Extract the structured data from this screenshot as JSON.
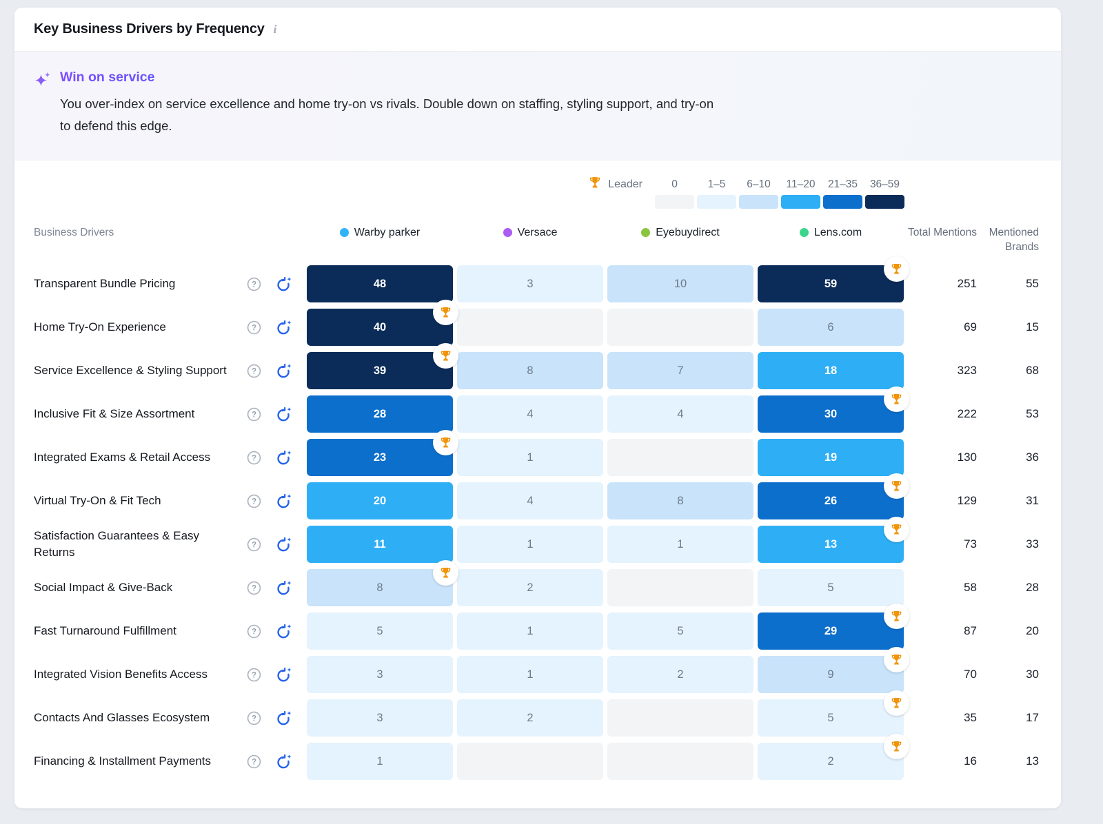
{
  "card": {
    "title": "Key Business Drivers by Frequency",
    "info_icon": "i"
  },
  "insight": {
    "title": "Win on service",
    "body": "You over-index on service excellence and home try-on vs rivals. Double down on staffing, styling support, and try-on to defend this edge.",
    "sparkles_icon": "sparkles-icon",
    "accent_gradient": [
      "#7C4DFF",
      "#1A6BEB"
    ]
  },
  "legend": {
    "leader_label": "Leader",
    "leader_icon": "trophy-icon",
    "buckets": [
      {
        "label": "0",
        "color": "#F2F4F6"
      },
      {
        "label": "1–5",
        "color": "#E4F3FD"
      },
      {
        "label": "6–10",
        "color": "#C8E3FA"
      },
      {
        "label": "11–20",
        "color": "#2EAFF5"
      },
      {
        "label": "21–35",
        "color": "#0D6FCC"
      },
      {
        "label": "36–59",
        "color": "#0B2C59"
      }
    ]
  },
  "colors": {
    "cell_text_light": "#6F7A89",
    "cell_text_dark": "#FFFFFF",
    "trophy": "#F0940A"
  },
  "table": {
    "row_header": "Business Drivers",
    "total_header": "Total Mentions",
    "brands_header": "Mentioned Brands",
    "brands": [
      {
        "name": "Warby parker",
        "color": "#2FB3F7"
      },
      {
        "name": "Versace",
        "color": "#AB5CF2"
      },
      {
        "name": "Eyebuydirect",
        "color": "#8BC43F"
      },
      {
        "name": "Lens.com",
        "color": "#3BD68C"
      }
    ],
    "rows": [
      {
        "label": "Transparent Bundle Pricing",
        "cells": [
          {
            "v": "48",
            "b": 5,
            "t": false
          },
          {
            "v": "3",
            "b": 1,
            "t": false
          },
          {
            "v": "10",
            "b": 2,
            "t": false
          },
          {
            "v": "59",
            "b": 5,
            "t": true
          }
        ],
        "total": "251",
        "brands": "55"
      },
      {
        "label": "Home Try-On Experience",
        "cells": [
          {
            "v": "40",
            "b": 5,
            "t": true
          },
          {
            "v": "",
            "b": 0,
            "t": false
          },
          {
            "v": "",
            "b": 0,
            "t": false
          },
          {
            "v": "6",
            "b": 2,
            "t": false
          }
        ],
        "total": "69",
        "brands": "15"
      },
      {
        "label": "Service Excellence & Styling Support",
        "cells": [
          {
            "v": "39",
            "b": 5,
            "t": true
          },
          {
            "v": "8",
            "b": 2,
            "t": false
          },
          {
            "v": "7",
            "b": 2,
            "t": false
          },
          {
            "v": "18",
            "b": 3,
            "t": false
          }
        ],
        "total": "323",
        "brands": "68"
      },
      {
        "label": "Inclusive Fit & Size Assortment",
        "cells": [
          {
            "v": "28",
            "b": 4,
            "t": false
          },
          {
            "v": "4",
            "b": 1,
            "t": false
          },
          {
            "v": "4",
            "b": 1,
            "t": false
          },
          {
            "v": "30",
            "b": 4,
            "t": true
          }
        ],
        "total": "222",
        "brands": "53"
      },
      {
        "label": "Integrated Exams & Retail Access",
        "cells": [
          {
            "v": "23",
            "b": 4,
            "t": true
          },
          {
            "v": "1",
            "b": 1,
            "t": false
          },
          {
            "v": "",
            "b": 0,
            "t": false
          },
          {
            "v": "19",
            "b": 3,
            "t": false
          }
        ],
        "total": "130",
        "brands": "36"
      },
      {
        "label": "Virtual Try-On & Fit Tech",
        "cells": [
          {
            "v": "20",
            "b": 3,
            "t": false
          },
          {
            "v": "4",
            "b": 1,
            "t": false
          },
          {
            "v": "8",
            "b": 2,
            "t": false
          },
          {
            "v": "26",
            "b": 4,
            "t": true
          }
        ],
        "total": "129",
        "brands": "31"
      },
      {
        "label": "Satisfaction Guarantees & Easy Returns",
        "cells": [
          {
            "v": "11",
            "b": 3,
            "t": false
          },
          {
            "v": "1",
            "b": 1,
            "t": false
          },
          {
            "v": "1",
            "b": 1,
            "t": false
          },
          {
            "v": "13",
            "b": 3,
            "t": true
          }
        ],
        "total": "73",
        "brands": "33"
      },
      {
        "label": "Social Impact & Give-Back",
        "cells": [
          {
            "v": "8",
            "b": 2,
            "t": true
          },
          {
            "v": "2",
            "b": 1,
            "t": false
          },
          {
            "v": "",
            "b": 0,
            "t": false
          },
          {
            "v": "5",
            "b": 1,
            "t": false
          }
        ],
        "total": "58",
        "brands": "28"
      },
      {
        "label": "Fast Turnaround Fulfillment",
        "cells": [
          {
            "v": "5",
            "b": 1,
            "t": false
          },
          {
            "v": "1",
            "b": 1,
            "t": false
          },
          {
            "v": "5",
            "b": 1,
            "t": false
          },
          {
            "v": "29",
            "b": 4,
            "t": true
          }
        ],
        "total": "87",
        "brands": "20"
      },
      {
        "label": "Integrated Vision Benefits Access",
        "cells": [
          {
            "v": "3",
            "b": 1,
            "t": false
          },
          {
            "v": "1",
            "b": 1,
            "t": false
          },
          {
            "v": "2",
            "b": 1,
            "t": false
          },
          {
            "v": "9",
            "b": 2,
            "t": true
          }
        ],
        "total": "70",
        "brands": "30"
      },
      {
        "label": "Contacts And Glasses Ecosystem",
        "cells": [
          {
            "v": "3",
            "b": 1,
            "t": false
          },
          {
            "v": "2",
            "b": 1,
            "t": false
          },
          {
            "v": "",
            "b": 0,
            "t": false
          },
          {
            "v": "5",
            "b": 1,
            "t": true
          }
        ],
        "total": "35",
        "brands": "17"
      },
      {
        "label": "Financing & Installment Payments",
        "cells": [
          {
            "v": "1",
            "b": 1,
            "t": false
          },
          {
            "v": "",
            "b": 0,
            "t": false
          },
          {
            "v": "",
            "b": 0,
            "t": false
          },
          {
            "v": "2",
            "b": 1,
            "t": true
          }
        ],
        "total": "16",
        "brands": "13"
      }
    ]
  }
}
